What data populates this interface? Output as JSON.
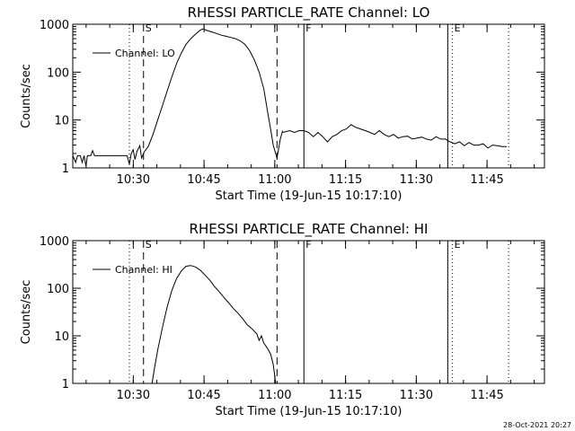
{
  "footer": {
    "timestamp": "28-Oct-2021 20:27"
  },
  "chart_data": [
    {
      "type": "line",
      "title": "RHESSI PARTICLE_RATE Channel: LO",
      "xlabel": "Start Time (19-Jun-15 10:17:10)",
      "ylabel": "Counts/sec",
      "x_units": "minutes after 10:17:10",
      "xlim": [
        0,
        100
      ],
      "ylim": [
        1,
        1000
      ],
      "yscale": "log",
      "x_ticks": [
        {
          "value": 12.83,
          "label": "10:30"
        },
        {
          "value": 27.83,
          "label": "10:45"
        },
        {
          "value": 42.83,
          "label": "11:00"
        },
        {
          "value": 57.83,
          "label": "11:15"
        },
        {
          "value": 72.83,
          "label": "11:30"
        },
        {
          "value": 87.83,
          "label": "11:45"
        }
      ],
      "y_ticks": [
        {
          "value": 1,
          "label": "1"
        },
        {
          "value": 10,
          "label": "10"
        },
        {
          "value": 100,
          "label": "100"
        },
        {
          "value": 1000,
          "label": "1000"
        }
      ],
      "legend": {
        "label": "Channel: LO",
        "position": "upper-left"
      },
      "grid": false,
      "markers": [
        {
          "x": 12.0,
          "style": "dotted",
          "label": ""
        },
        {
          "x": 15.0,
          "style": "dashed",
          "label": "S"
        },
        {
          "x": 43.3,
          "style": "dashed",
          "label": ""
        },
        {
          "x": 49.0,
          "style": "solid",
          "label": "F"
        },
        {
          "x": 79.5,
          "style": "solid",
          "label": ""
        },
        {
          "x": 80.5,
          "style": "dotted",
          "label": "E"
        },
        {
          "x": 92.4,
          "style": "dotted",
          "label": ""
        }
      ],
      "series": [
        {
          "name": "Channel: LO",
          "segments": [
            [
              [
                0,
                1.8
              ],
              [
                0.6,
                1.3
              ],
              [
                1,
                1.8
              ],
              [
                1.6,
                1.8
              ],
              [
                2,
                1.3
              ],
              [
                2.4,
                1.8
              ],
              [
                2.8,
                1.1
              ],
              [
                3.1,
                1.8
              ],
              [
                3.8,
                1.8
              ],
              [
                4.2,
                2.3
              ],
              [
                4.6,
                1.8
              ],
              [
                6,
                1.8
              ],
              [
                8,
                1.8
              ],
              [
                10,
                1.8
              ],
              [
                11.5,
                1.8
              ],
              [
                12,
                1.2
              ],
              [
                12.4,
                2.0
              ],
              [
                12.8,
                2.4
              ],
              [
                13.2,
                1.5
              ],
              [
                13.6,
                2.2
              ],
              [
                14.2,
                2.9
              ],
              [
                14.6,
                1.6
              ],
              [
                15.2,
                2.2
              ],
              [
                16,
                2.8
              ],
              [
                17,
                5
              ],
              [
                18,
                10
              ],
              [
                19,
                20
              ],
              [
                20,
                40
              ],
              [
                21,
                80
              ],
              [
                22,
                150
              ],
              [
                23,
                250
              ],
              [
                24,
                380
              ],
              [
                25,
                500
              ],
              [
                26,
                620
              ],
              [
                27,
                750
              ],
              [
                27.6,
                800
              ],
              [
                28.5,
                740
              ],
              [
                29.5,
                690
              ],
              [
                30.5,
                640
              ],
              [
                31.5,
                590
              ],
              [
                32.5,
                560
              ],
              [
                33.5,
                530
              ],
              [
                34.5,
                500
              ],
              [
                35.5,
                450
              ],
              [
                36.5,
                380
              ],
              [
                37.5,
                280
              ],
              [
                38.5,
                180
              ],
              [
                39.5,
                100
              ],
              [
                40.5,
                45
              ],
              [
                41.3,
                15
              ],
              [
                42,
                6
              ],
              [
                42.5,
                3
              ],
              [
                43,
                2
              ],
              [
                43.3,
                1.6
              ],
              [
                44,
                4
              ],
              [
                44.5,
                6
              ]
            ],
            [
              [
                44.5,
                5.5
              ],
              [
                46,
                6
              ],
              [
                47,
                5.5
              ],
              [
                48,
                6
              ],
              [
                49,
                6
              ],
              [
                50,
                5.5
              ],
              [
                51,
                4.5
              ],
              [
                52,
                5.5
              ],
              [
                53,
                4.5
              ],
              [
                54,
                3.5
              ],
              [
                55,
                4.5
              ],
              [
                56,
                5
              ],
              [
                57,
                6
              ],
              [
                58,
                6.5
              ],
              [
                59,
                8
              ],
              [
                60,
                7
              ],
              [
                61,
                6.5
              ],
              [
                62,
                6
              ],
              [
                63,
                5.5
              ],
              [
                64,
                5
              ],
              [
                65,
                6
              ],
              [
                66,
                5
              ],
              [
                67,
                4.5
              ],
              [
                68,
                5
              ],
              [
                69,
                4.2
              ],
              [
                70,
                4.5
              ],
              [
                71,
                4.6
              ],
              [
                72,
                4
              ],
              [
                73,
                4.2
              ],
              [
                74,
                4.4
              ],
              [
                75,
                4
              ],
              [
                76,
                3.8
              ],
              [
                77,
                4.5
              ],
              [
                78,
                4
              ],
              [
                79,
                4
              ],
              [
                80,
                3.5
              ],
              [
                81,
                3.2
              ],
              [
                82,
                3.5
              ],
              [
                83,
                2.9
              ],
              [
                84,
                3.4
              ],
              [
                85,
                3
              ],
              [
                86,
                3
              ],
              [
                87,
                3.2
              ],
              [
                88,
                2.6
              ],
              [
                89,
                3
              ],
              [
                90,
                2.9
              ],
              [
                91,
                2.8
              ],
              [
                92,
                2.8
              ]
            ]
          ]
        }
      ]
    },
    {
      "type": "line",
      "title": "RHESSI PARTICLE_RATE Channel: HI",
      "xlabel": "Start Time (19-Jun-15 10:17:10)",
      "ylabel": "Counts/sec",
      "x_units": "minutes after 10:17:10",
      "xlim": [
        0,
        100
      ],
      "ylim": [
        1,
        1000
      ],
      "yscale": "log",
      "x_ticks": [
        {
          "value": 12.83,
          "label": "10:30"
        },
        {
          "value": 27.83,
          "label": "10:45"
        },
        {
          "value": 42.83,
          "label": "11:00"
        },
        {
          "value": 57.83,
          "label": "11:15"
        },
        {
          "value": 72.83,
          "label": "11:30"
        },
        {
          "value": 87.83,
          "label": "11:45"
        }
      ],
      "y_ticks": [
        {
          "value": 1,
          "label": "1"
        },
        {
          "value": 10,
          "label": "10"
        },
        {
          "value": 100,
          "label": "100"
        },
        {
          "value": 1000,
          "label": "1000"
        }
      ],
      "legend": {
        "label": "Channel: HI",
        "position": "upper-left"
      },
      "grid": false,
      "markers": [
        {
          "x": 12.0,
          "style": "dotted",
          "label": ""
        },
        {
          "x": 15.0,
          "style": "dashed",
          "label": "S"
        },
        {
          "x": 43.3,
          "style": "dashed",
          "label": ""
        },
        {
          "x": 49.0,
          "style": "solid",
          "label": "F"
        },
        {
          "x": 79.5,
          "style": "solid",
          "label": ""
        },
        {
          "x": 80.5,
          "style": "dotted",
          "label": "E"
        },
        {
          "x": 92.4,
          "style": "dotted",
          "label": ""
        }
      ],
      "series": [
        {
          "name": "Channel: HI",
          "segments": [
            [
              [
                16.8,
                1
              ],
              [
                17.3,
                2
              ],
              [
                18,
                5
              ],
              [
                19,
                15
              ],
              [
                20,
                40
              ],
              [
                21,
                90
              ],
              [
                22,
                160
              ],
              [
                23,
                230
              ],
              [
                24,
                290
              ],
              [
                25,
                300
              ],
              [
                26,
                280
              ],
              [
                27,
                240
              ],
              [
                28,
                190
              ],
              [
                29,
                150
              ],
              [
                30,
                110
              ],
              [
                31,
                85
              ],
              [
                32,
                65
              ],
              [
                33,
                50
              ],
              [
                34,
                38
              ],
              [
                35,
                30
              ],
              [
                36,
                23
              ],
              [
                37,
                17
              ],
              [
                38,
                14
              ],
              [
                39,
                11
              ],
              [
                39.5,
                8
              ],
              [
                40,
                10
              ],
              [
                40.5,
                7
              ],
              [
                41,
                6
              ],
              [
                41.5,
                5
              ],
              [
                42,
                4
              ],
              [
                42.5,
                2.5
              ],
              [
                42.8,
                1.5
              ],
              [
                43,
                1
              ]
            ]
          ]
        }
      ]
    }
  ]
}
